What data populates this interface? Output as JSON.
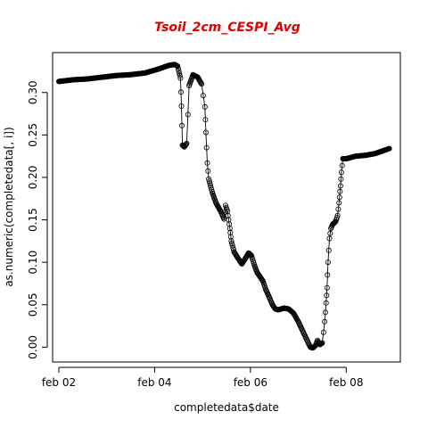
{
  "chart_data": {
    "type": "scatter",
    "title": "Tsoil_2cm_CESPI_Avg",
    "title_color": "#e00000",
    "xlabel": "completedata$date",
    "ylabel": "as.numeric(completedata[, i])",
    "x_tick_values": [
      0,
      2,
      4,
      6
    ],
    "x_tick_labels": [
      "feb 02",
      "feb 04",
      "feb 06",
      "feb 08"
    ],
    "xlim": [
      -0.13,
      7.13
    ],
    "y_ticks": [
      0.0,
      0.05,
      0.1,
      0.15,
      0.2,
      0.25,
      0.3
    ],
    "y_tick_labels": [
      "0.00",
      "0.05",
      "0.10",
      "0.15",
      "0.20",
      "0.25",
      "0.30"
    ],
    "ylim": [
      -0.0175,
      0.347
    ],
    "grid": false,
    "marker": "open-circle",
    "series": [
      {
        "x_unit": "days since feb 02",
        "points": [
          [
            0.0,
            0.313
          ],
          [
            0.3,
            0.315
          ],
          [
            0.6,
            0.316
          ],
          [
            0.9,
            0.318
          ],
          [
            1.2,
            0.32
          ],
          [
            1.5,
            0.321
          ],
          [
            1.8,
            0.323
          ],
          [
            2.1,
            0.328
          ],
          [
            2.3,
            0.332
          ],
          [
            2.42,
            0.333
          ],
          [
            2.48,
            0.331
          ],
          [
            2.54,
            0.317
          ],
          [
            2.56,
            0.284
          ],
          [
            2.58,
            0.238
          ],
          [
            2.62,
            0.236
          ],
          [
            2.67,
            0.24
          ],
          [
            2.72,
            0.308
          ],
          [
            2.8,
            0.321
          ],
          [
            2.9,
            0.318
          ],
          [
            2.98,
            0.31
          ],
          [
            3.05,
            0.283
          ],
          [
            3.07,
            0.253
          ],
          [
            3.1,
            0.217
          ],
          [
            3.13,
            0.198
          ],
          [
            3.2,
            0.183
          ],
          [
            3.28,
            0.17
          ],
          [
            3.38,
            0.16
          ],
          [
            3.45,
            0.151
          ],
          [
            3.48,
            0.167
          ],
          [
            3.52,
            0.16
          ],
          [
            3.57,
            0.14
          ],
          [
            3.6,
            0.125
          ],
          [
            3.66,
            0.112
          ],
          [
            3.75,
            0.104
          ],
          [
            3.82,
            0.098
          ],
          [
            3.9,
            0.105
          ],
          [
            3.96,
            0.111
          ],
          [
            4.02,
            0.108
          ],
          [
            4.08,
            0.097
          ],
          [
            4.14,
            0.088
          ],
          [
            4.2,
            0.083
          ],
          [
            4.26,
            0.078
          ],
          [
            4.32,
            0.068
          ],
          [
            4.4,
            0.058
          ],
          [
            4.46,
            0.05
          ],
          [
            4.52,
            0.045
          ],
          [
            4.58,
            0.044
          ],
          [
            4.7,
            0.046
          ],
          [
            4.8,
            0.045
          ],
          [
            4.9,
            0.04
          ],
          [
            5.0,
            0.03
          ],
          [
            5.1,
            0.018
          ],
          [
            5.2,
            0.006
          ],
          [
            5.25,
            0.0
          ],
          [
            5.3,
            -0.001
          ],
          [
            5.36,
            0.002
          ],
          [
            5.4,
            0.008
          ],
          [
            5.45,
            0.003
          ],
          [
            5.5,
            0.005
          ],
          [
            5.55,
            0.03
          ],
          [
            5.58,
            0.052
          ],
          [
            5.6,
            0.07
          ],
          [
            5.62,
            0.1
          ],
          [
            5.65,
            0.128
          ],
          [
            5.68,
            0.14
          ],
          [
            5.72,
            0.145
          ],
          [
            5.78,
            0.148
          ],
          [
            5.82,
            0.155
          ],
          [
            5.85,
            0.17
          ],
          [
            5.88,
            0.19
          ],
          [
            5.9,
            0.206
          ],
          [
            5.93,
            0.222
          ],
          [
            6.0,
            0.222
          ],
          [
            6.2,
            0.225
          ],
          [
            6.4,
            0.226
          ],
          [
            6.6,
            0.228
          ],
          [
            6.75,
            0.231
          ],
          [
            6.9,
            0.234
          ]
        ]
      }
    ]
  }
}
